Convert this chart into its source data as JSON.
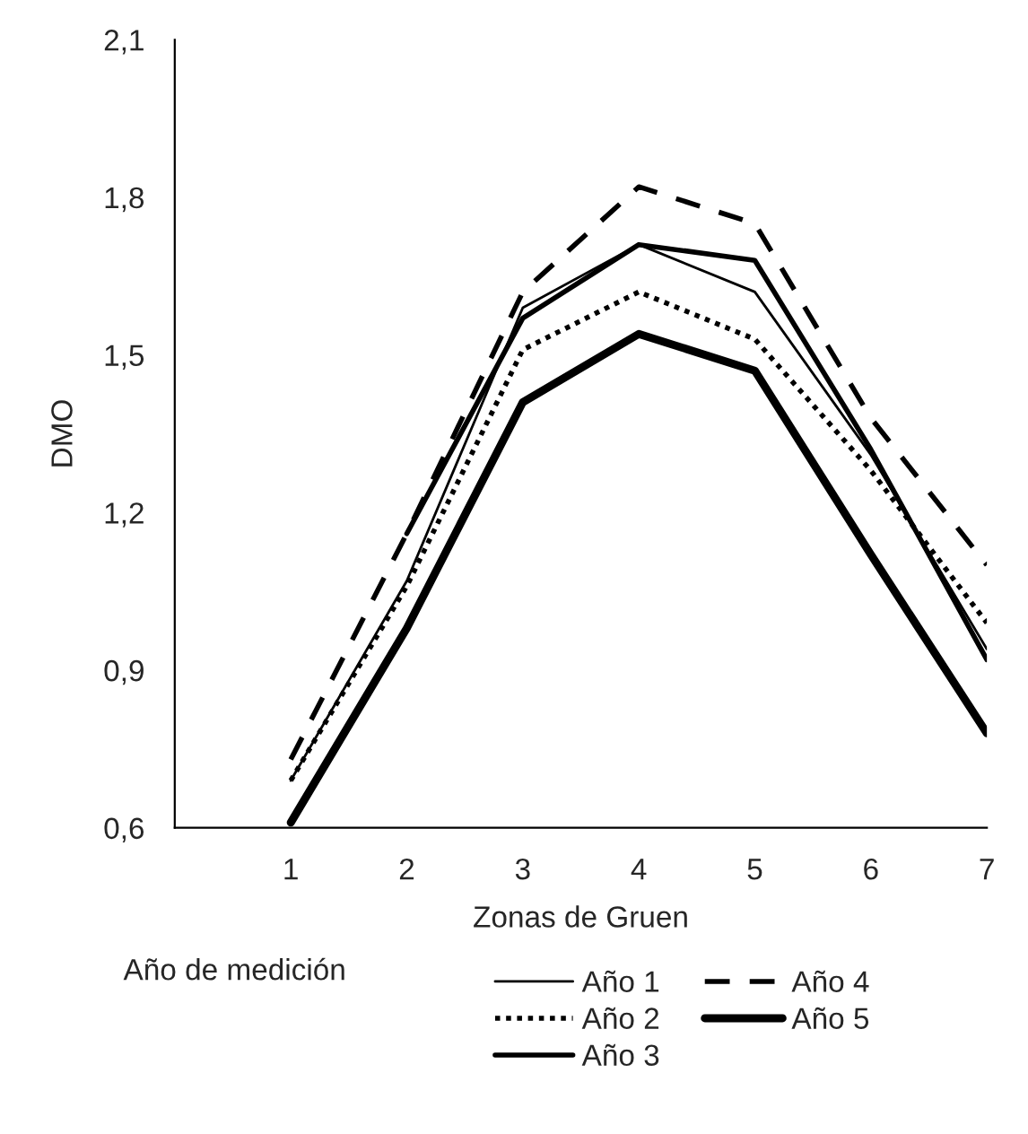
{
  "chart_data": {
    "type": "line",
    "xlabel": "Zonas de Gruen",
    "ylabel": "DMO",
    "legend_title": "Año de medición",
    "x": [
      1,
      2,
      3,
      4,
      5,
      6,
      7
    ],
    "series": [
      {
        "name": "Año 1",
        "color": "#000000",
        "line_style": "solid",
        "values": [
          0.69,
          1.07,
          1.59,
          1.71,
          1.62,
          1.31,
          0.94
        ]
      },
      {
        "name": "Año 2",
        "color": "#000000",
        "line_style": "dotted",
        "values": [
          0.69,
          1.06,
          1.51,
          1.62,
          1.53,
          1.28,
          0.99
        ]
      },
      {
        "name": "Año 3",
        "color": "#000000",
        "line_style": "solid",
        "values": [
          null,
          1.16,
          1.57,
          1.71,
          1.68,
          1.32,
          0.92
        ]
      },
      {
        "name": "Año 4",
        "color": "#000000",
        "line_style": "dashed",
        "values": [
          0.73,
          1.16,
          1.62,
          1.82,
          1.75,
          1.38,
          1.1
        ]
      },
      {
        "name": "Año 5",
        "color": "#000000",
        "line_style": "solid",
        "values": [
          0.61,
          0.98,
          1.41,
          1.54,
          1.47,
          1.12,
          0.78
        ]
      }
    ],
    "xlim": [
      0,
      7
    ],
    "xticks": [
      1,
      2,
      3,
      4,
      5,
      6,
      7
    ],
    "ylim": [
      0.6,
      2.1
    ],
    "yticks": [
      {
        "value": 0.6,
        "label": "0,6"
      },
      {
        "value": 0.9,
        "label": "0,9"
      },
      {
        "value": 1.2,
        "label": "1,2"
      },
      {
        "value": 1.5,
        "label": "1,5"
      },
      {
        "value": 1.8,
        "label": "1,8"
      },
      {
        "value": 2.1,
        "label": "2,1"
      }
    ],
    "grid": false,
    "legend": "bottom",
    "marker": "none"
  }
}
